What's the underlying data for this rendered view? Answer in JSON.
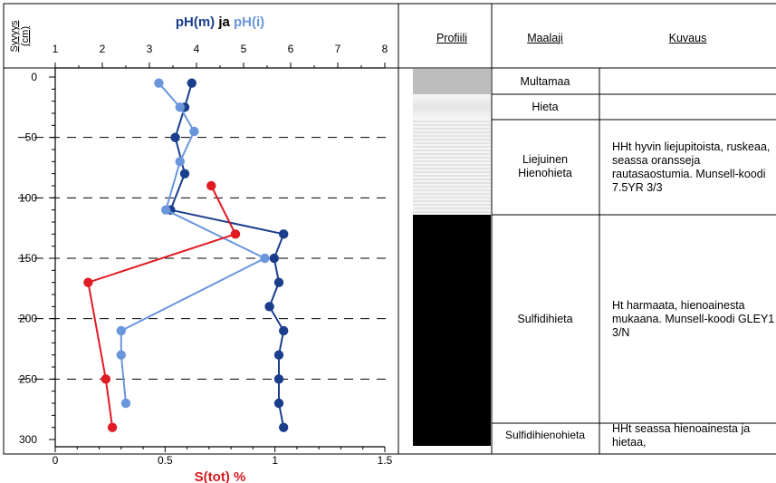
{
  "chart_data": {
    "type": "line",
    "title_parts": [
      "pH(m)",
      " ja ",
      "pH(i)"
    ],
    "y_axis": {
      "label": "Syvyys (cm)",
      "label_top": "Syvyys",
      "label_bottom": "(cm)",
      "lim": [
        0,
        300
      ],
      "ticks": [
        0,
        50,
        100,
        150,
        200,
        250,
        300
      ],
      "inverted": true
    },
    "top_axis": {
      "lim": [
        1,
        8
      ],
      "ticks": [
        1,
        2,
        3,
        4,
        5,
        6,
        7,
        8
      ]
    },
    "bottom_axis": {
      "label": "S(tot) %",
      "lim": [
        0,
        1.5
      ],
      "ticks": [
        0,
        0.5,
        1,
        1.5
      ],
      "tick_labels": [
        "0",
        "0.5",
        "1",
        "1.5"
      ]
    },
    "grid": {
      "dashed_depths": [
        50,
        100,
        150,
        200,
        250
      ]
    },
    "series": [
      {
        "name": "pH(m)",
        "axis": "top",
        "color": "#1a3e8c",
        "points": [
          [
            3.9,
            5
          ],
          [
            3.75,
            25
          ],
          [
            3.55,
            50
          ],
          [
            3.75,
            80
          ],
          [
            3.45,
            110
          ],
          [
            5.85,
            130
          ],
          [
            5.65,
            150
          ],
          [
            5.75,
            170
          ],
          [
            5.55,
            190
          ],
          [
            5.85,
            210
          ],
          [
            5.75,
            230
          ],
          [
            5.75,
            250
          ],
          [
            5.75,
            270
          ],
          [
            5.85,
            290
          ]
        ]
      },
      {
        "name": "pH(i)",
        "axis": "top",
        "color": "#6a96dc",
        "points": [
          [
            3.2,
            5
          ],
          [
            3.65,
            25
          ],
          [
            3.95,
            45
          ],
          [
            3.65,
            70
          ],
          [
            3.35,
            110
          ],
          [
            5.45,
            150
          ],
          [
            2.4,
            210
          ],
          [
            2.4,
            230
          ],
          [
            2.5,
            270
          ]
        ]
      },
      {
        "name": "S(tot) %",
        "axis": "bottom",
        "color": "#e01b24",
        "points": [
          [
            0.71,
            90
          ],
          [
            0.82,
            130
          ],
          [
            0.15,
            170
          ],
          [
            0.23,
            250
          ],
          [
            0.26,
            290
          ]
        ]
      }
    ]
  },
  "table": {
    "headers": {
      "profile": "Profiili",
      "soil": "Maalaji",
      "description": "Kuvaus"
    },
    "layers": [
      {
        "soil": "Multamaa",
        "description": "",
        "fill": "#bdbdbd"
      },
      {
        "soil": "Hieta",
        "description": "",
        "fill": "#ececec"
      },
      {
        "soil": "Liejuinen Hienohieta",
        "description": "HHt hyvin liejupitoista, ruskeaa, seassa oransseja rautasaostumia. Munsell-koodi 7.5YR 3/3",
        "fill": "#f2f2f2"
      },
      {
        "soil": "Sulfidihieta",
        "description": "Ht harmaata, hienoainesta mukaana. Munsell-koodi GLEY1 3/N",
        "fill": "#000000"
      },
      {
        "soil": "Sulfidihienohieta",
        "description": "HHt seassa hienoainesta ja hietaa,",
        "fill": "#000000"
      }
    ]
  }
}
